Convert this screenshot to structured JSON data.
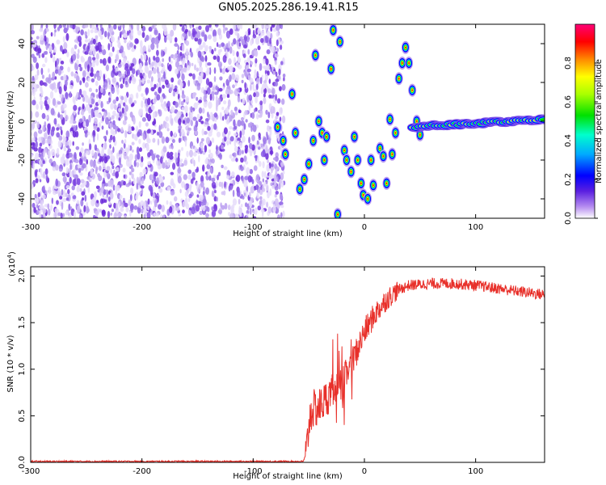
{
  "title": "GN05.2025.286.19.41.R15",
  "chart_data": [
    {
      "type": "heatmap",
      "name": "spectrogram",
      "xlabel": "Height of straight line (km)",
      "ylabel": "Frequency (Hz)",
      "xlim": [
        -300,
        162
      ],
      "ylim": [
        -50,
        50
      ],
      "x_ticks": [
        -300,
        -200,
        -100,
        0,
        100
      ],
      "y_ticks": [
        -40,
        -20,
        0,
        20,
        40
      ],
      "noise_region_x": [
        -300,
        -75
      ],
      "signal_blobs": [
        {
          "x": -78,
          "y": -3
        },
        {
          "x": -73,
          "y": -10
        },
        {
          "x": -71,
          "y": -17
        },
        {
          "x": -65,
          "y": 14
        },
        {
          "x": -62,
          "y": -6
        },
        {
          "x": -58,
          "y": -35
        },
        {
          "x": -54,
          "y": -30
        },
        {
          "x": -50,
          "y": -22
        },
        {
          "x": -46,
          "y": -10
        },
        {
          "x": -44,
          "y": 34
        },
        {
          "x": -41,
          "y": 0
        },
        {
          "x": -38,
          "y": -6
        },
        {
          "x": -36,
          "y": -20
        },
        {
          "x": -34,
          "y": -8
        },
        {
          "x": -30,
          "y": 27
        },
        {
          "x": -28,
          "y": 47
        },
        {
          "x": -24,
          "y": -48
        },
        {
          "x": -22,
          "y": 41
        },
        {
          "x": -18,
          "y": -15
        },
        {
          "x": -16,
          "y": -20
        },
        {
          "x": -12,
          "y": -26
        },
        {
          "x": -9,
          "y": -8
        },
        {
          "x": -6,
          "y": -20
        },
        {
          "x": -3,
          "y": -32
        },
        {
          "x": -1,
          "y": -38
        },
        {
          "x": 3,
          "y": -40
        },
        {
          "x": 6,
          "y": -20
        },
        {
          "x": 8,
          "y": -33
        },
        {
          "x": 14,
          "y": -14
        },
        {
          "x": 17,
          "y": -18
        },
        {
          "x": 20,
          "y": -32
        },
        {
          "x": 23,
          "y": 1
        },
        {
          "x": 25,
          "y": -17
        },
        {
          "x": 28,
          "y": -6
        },
        {
          "x": 31,
          "y": 22
        },
        {
          "x": 34,
          "y": 30
        },
        {
          "x": 37,
          "y": 38
        },
        {
          "x": 40,
          "y": 30
        },
        {
          "x": 43,
          "y": 16
        },
        {
          "x": 47,
          "y": 0
        },
        {
          "x": 50,
          "y": -7
        }
      ],
      "carrier_line": {
        "x_start": 45,
        "x_end": 162,
        "y_start": -3,
        "y_end": 1
      }
    },
    {
      "type": "colorbar",
      "name": "amplitude-scale",
      "label": "Normalized spectral amplitude",
      "range": [
        0,
        1
      ],
      "ticks": [
        "0.0",
        "0.2",
        "0.4",
        "0.6",
        "0.8"
      ],
      "tick_values": [
        0,
        0.2,
        0.4,
        0.6,
        0.8
      ]
    },
    {
      "type": "line",
      "name": "snr",
      "xlabel": "Height of straight line (km)",
      "ylabel": "SNR (10 * v/v)",
      "exponent_label": "(x10^4)",
      "exponent_base": "(x10",
      "exponent_power": "4",
      "xlim": [
        -300,
        162
      ],
      "ylim": [
        0,
        2.1
      ],
      "x_ticks": [
        -300,
        -200,
        -100,
        0,
        100
      ],
      "y_ticks": [
        "0.0",
        "0.5",
        "1.0",
        "1.5",
        "2.0"
      ],
      "y_tick_values": [
        0,
        0.5,
        1.0,
        1.5,
        2.0
      ],
      "color": "#e8302a",
      "series": [
        {
          "name": "SNR",
          "x": [
            -300,
            -200,
            -100,
            -55,
            -52,
            -50,
            -48,
            -40,
            -30,
            -20,
            -10,
            0,
            10,
            20,
            30,
            40,
            60,
            80,
            100,
            130,
            162
          ],
          "values": [
            0.01,
            0.01,
            0.01,
            0.01,
            0.1,
            0.4,
            0.55,
            0.6,
            0.75,
            0.85,
            1.1,
            1.4,
            1.6,
            1.75,
            1.85,
            1.9,
            1.92,
            1.92,
            1.9,
            1.85,
            1.8
          ]
        }
      ]
    }
  ]
}
